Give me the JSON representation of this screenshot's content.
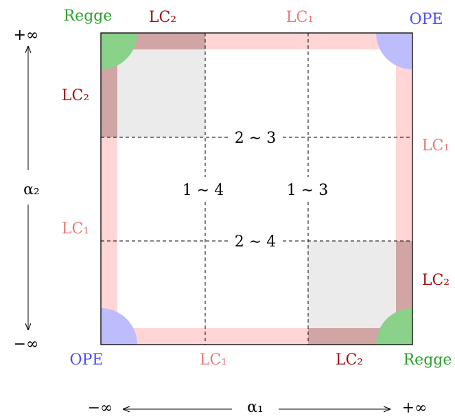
{
  "colors": {
    "lc1_band": "#ffd5d5",
    "lc2_band": "#d2a5a5",
    "overlap": "#ebebeb",
    "regge": "#8ad18a",
    "ope": "#bdbdfd",
    "regge_text": "#2ca02c",
    "ope_text": "#4c4cff",
    "lc1_text": "#e87878",
    "lc2_text": "#a01010",
    "ink": "#000000"
  },
  "corners": {
    "top_left": "Regge",
    "top_right": "OPE",
    "bottom_left": "OPE",
    "bottom_right": "Regge"
  },
  "edges": {
    "top_left": "LC₂",
    "top_right": "LC₁",
    "left_upper": "LC₂",
    "left_lower": "LC₁",
    "right_upper": "LC₁",
    "right_lower": "LC₂",
    "bottom_left": "LC₁",
    "bottom_right": "LC₂"
  },
  "grid_labels": {
    "upper_horizontal": "2 ∼ 3",
    "lower_horizontal": "2 ∼ 4",
    "left_vertical": "1 ∼ 4",
    "right_vertical": "1 ∼ 3"
  },
  "axes": {
    "y_label": "α₂",
    "y_top": "+∞",
    "y_bottom": "−∞",
    "x_label": "α₁",
    "x_left": "−∞",
    "x_right": "+∞"
  }
}
